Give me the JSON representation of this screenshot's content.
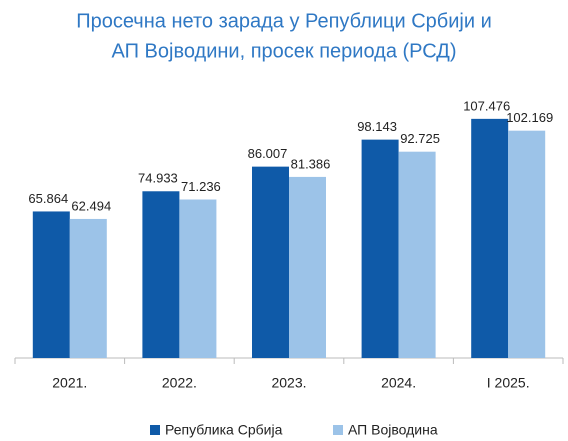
{
  "chart_data": {
    "type": "bar",
    "title": [
      "Просечна нето зарада у Републици Србији и",
      "АП Војводини, просек периода (РСД)"
    ],
    "categories": [
      "2021.",
      "2022.",
      "2023.",
      "2024.",
      "I 2025."
    ],
    "series": [
      {
        "name": "Република Србија",
        "color": "#0f5aa8",
        "values": [
          65864,
          74933,
          86007,
          98143,
          107476
        ],
        "value_labels": [
          "65.864",
          "74.933",
          "86.007",
          "98.143",
          "107.476"
        ]
      },
      {
        "name": "АП Војводина",
        "color": "#9cc3e8",
        "values": [
          62494,
          71236,
          81386,
          92725,
          102169
        ],
        "value_labels": [
          "62.494",
          "71.236",
          "81.386",
          "92.725",
          "102.169"
        ]
      }
    ],
    "ylim": [
      0,
      120000
    ],
    "grid": false,
    "legend": "bottom"
  }
}
